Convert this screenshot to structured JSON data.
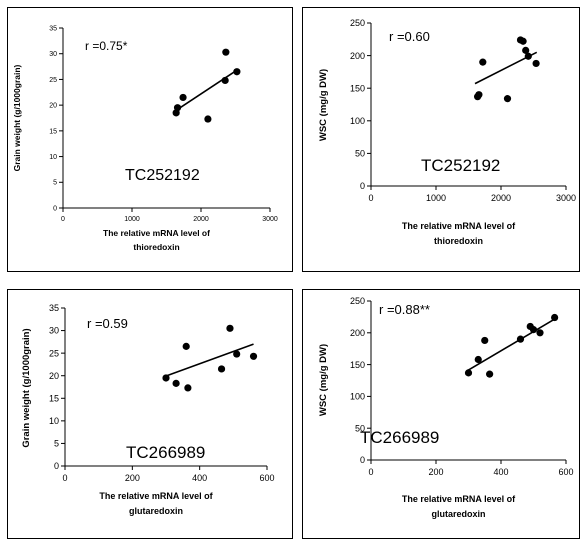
{
  "chart_data": [
    {
      "type": "scatter",
      "ylabel": "Grain weight (g/1000grain)",
      "xlabel_line1": "The relative mRNA level of",
      "xlabel_line2": "thioredoxin",
      "annotation": "r =0.75*",
      "gene_id": "TC252192",
      "xlim": [
        0,
        3000
      ],
      "ylim": [
        0,
        35
      ],
      "x_ticks": [
        0,
        1000,
        2000,
        3000
      ],
      "y_ticks": [
        0,
        5,
        10,
        15,
        20,
        25,
        30,
        35
      ],
      "points": [
        {
          "x": 1640,
          "y": 18.5
        },
        {
          "x": 1660,
          "y": 19.5
        },
        {
          "x": 1740,
          "y": 21.5
        },
        {
          "x": 2100,
          "y": 17.3
        },
        {
          "x": 2350,
          "y": 24.8
        },
        {
          "x": 2360,
          "y": 30.3
        },
        {
          "x": 2520,
          "y": 26.5
        }
      ],
      "trendline": [
        [
          1640,
          19.0
        ],
        [
          2520,
          26.8
        ]
      ]
    },
    {
      "type": "scatter",
      "ylabel": "WSC (mg/g DW)",
      "xlabel_line1": "The relative mRNA level of",
      "xlabel_line2": "thioredoxin",
      "annotation": "r =0.60",
      "gene_id": "TC252192",
      "xlim": [
        0,
        3000
      ],
      "ylim": [
        0,
        250
      ],
      "x_ticks": [
        0,
        1000,
        2000,
        3000
      ],
      "y_ticks": [
        0,
        50,
        100,
        150,
        200,
        250
      ],
      "points": [
        {
          "x": 1640,
          "y": 137
        },
        {
          "x": 1660,
          "y": 140
        },
        {
          "x": 1720,
          "y": 190
        },
        {
          "x": 2100,
          "y": 134
        },
        {
          "x": 2300,
          "y": 224
        },
        {
          "x": 2340,
          "y": 222
        },
        {
          "x": 2380,
          "y": 208
        },
        {
          "x": 2420,
          "y": 199
        },
        {
          "x": 2540,
          "y": 188
        }
      ],
      "trendline": [
        [
          1600,
          157
        ],
        [
          2550,
          205
        ]
      ]
    },
    {
      "type": "scatter",
      "ylabel": "Grain weight (g/1000grain)",
      "xlabel_line1": "The relative mRNA level of",
      "xlabel_line2": "glutaredoxin",
      "annotation": "r =0.59",
      "gene_id": "TC266989",
      "xlim": [
        0,
        600
      ],
      "ylim": [
        0,
        35
      ],
      "x_ticks": [
        0,
        200,
        400,
        600
      ],
      "y_ticks": [
        0,
        5,
        10,
        15,
        20,
        25,
        30,
        35
      ],
      "points": [
        {
          "x": 300,
          "y": 19.5
        },
        {
          "x": 330,
          "y": 18.3
        },
        {
          "x": 360,
          "y": 26.5
        },
        {
          "x": 365,
          "y": 17.3
        },
        {
          "x": 465,
          "y": 21.5
        },
        {
          "x": 490,
          "y": 30.5
        },
        {
          "x": 510,
          "y": 24.8
        },
        {
          "x": 560,
          "y": 24.3
        }
      ],
      "trendline": [
        [
          295,
          19.8
        ],
        [
          560,
          27.0
        ]
      ]
    },
    {
      "type": "scatter",
      "ylabel": "WSC (mg/g DW)",
      "xlabel_line1": "The relative mRNA level of",
      "xlabel_line2": "glutaredoxin",
      "annotation": "r =0.88**",
      "gene_id": "TC266989",
      "xlim": [
        0,
        600
      ],
      "ylim": [
        0,
        250
      ],
      "x_ticks": [
        0,
        200,
        400,
        600
      ],
      "y_ticks": [
        0,
        50,
        100,
        150,
        200,
        250
      ],
      "points": [
        {
          "x": 300,
          "y": 137
        },
        {
          "x": 330,
          "y": 158
        },
        {
          "x": 350,
          "y": 188
        },
        {
          "x": 365,
          "y": 135
        },
        {
          "x": 460,
          "y": 190
        },
        {
          "x": 490,
          "y": 210
        },
        {
          "x": 500,
          "y": 205
        },
        {
          "x": 520,
          "y": 200
        },
        {
          "x": 565,
          "y": 224
        }
      ],
      "trendline": [
        [
          295,
          140
        ],
        [
          560,
          220
        ]
      ]
    }
  ]
}
